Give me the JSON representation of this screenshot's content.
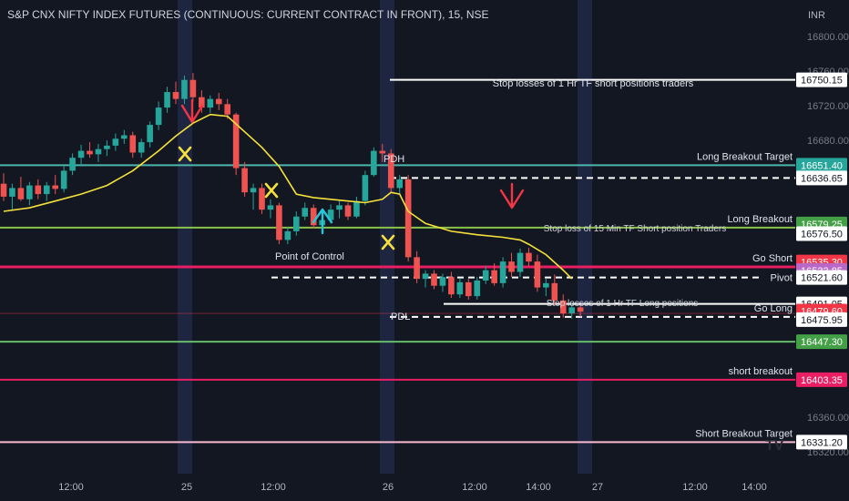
{
  "chart_data": {
    "type": "candlestick",
    "title": "S&P CNX NIFTY INDEX FUTURES (CONTINUOUS: CURRENT CONTRACT IN FRONT), 15, NSE",
    "currency": "INR",
    "y_ticks": [
      "16800.00",
      "16760.00",
      "16720.00",
      "16680.00",
      "16360.00",
      "16320.00"
    ],
    "x_ticks": [
      "12:00",
      "25",
      "12:00",
      "26",
      "12:00",
      "14:00",
      "27",
      "12:00",
      "14:00"
    ],
    "ylim": [
      16300,
      16815
    ],
    "candles": [
      [
        16630,
        16642,
        16610,
        16615
      ],
      [
        16615,
        16630,
        16600,
        16625
      ],
      [
        16625,
        16638,
        16610,
        16612
      ],
      [
        16612,
        16632,
        16605,
        16628
      ],
      [
        16628,
        16635,
        16612,
        16618
      ],
      [
        16618,
        16632,
        16610,
        16628
      ],
      [
        16628,
        16640,
        16618,
        16624
      ],
      [
        16624,
        16650,
        16620,
        16645
      ],
      [
        16645,
        16665,
        16640,
        16660
      ],
      [
        16660,
        16675,
        16650,
        16668
      ],
      [
        16668,
        16678,
        16660,
        16664
      ],
      [
        16664,
        16676,
        16655,
        16670
      ],
      [
        16670,
        16680,
        16662,
        16674
      ],
      [
        16674,
        16688,
        16668,
        16682
      ],
      [
        16682,
        16692,
        16676,
        16686
      ],
      [
        16686,
        16690,
        16660,
        16666
      ],
      [
        16666,
        16682,
        16660,
        16678
      ],
      [
        16678,
        16702,
        16672,
        16698
      ],
      [
        16698,
        16725,
        16692,
        16718
      ],
      [
        16718,
        16742,
        16712,
        16736
      ],
      [
        16736,
        16748,
        16722,
        16728
      ],
      [
        16728,
        16755,
        16722,
        16750
      ],
      [
        16750,
        16758,
        16725,
        16730
      ],
      [
        16730,
        16738,
        16712,
        16718
      ],
      [
        16718,
        16732,
        16712,
        16728
      ],
      [
        16728,
        16735,
        16715,
        16722
      ],
      [
        16722,
        16728,
        16705,
        16710
      ],
      [
        16710,
        16712,
        16640,
        16648
      ],
      [
        16648,
        16655,
        16615,
        16620
      ],
      [
        16620,
        16630,
        16600,
        16625
      ],
      [
        16625,
        16630,
        16595,
        16600
      ],
      [
        16600,
        16612,
        16590,
        16605
      ],
      [
        16605,
        16608,
        16560,
        16565
      ],
      [
        16565,
        16580,
        16560,
        16575
      ],
      [
        16575,
        16598,
        16570,
        16592
      ],
      [
        16592,
        16608,
        16588,
        16602
      ],
      [
        16602,
        16606,
        16578,
        16582
      ],
      [
        16582,
        16592,
        16575,
        16588
      ],
      [
        16588,
        16606,
        16584,
        16600
      ],
      [
        16600,
        16610,
        16590,
        16605
      ],
      [
        16605,
        16608,
        16588,
        16592
      ],
      [
        16592,
        16615,
        16590,
        16610
      ],
      [
        16610,
        16645,
        16605,
        16640
      ],
      [
        16640,
        16672,
        16638,
        16668
      ],
      [
        16668,
        16676,
        16655,
        16665
      ],
      [
        16665,
        16670,
        16620,
        16625
      ],
      [
        16625,
        16640,
        16618,
        16635
      ],
      [
        16635,
        16640,
        16540,
        16545
      ],
      [
        16545,
        16552,
        16515,
        16520
      ],
      [
        16520,
        16530,
        16510,
        16526
      ],
      [
        16526,
        16530,
        16508,
        16512
      ],
      [
        16512,
        16526,
        16505,
        16522
      ],
      [
        16522,
        16528,
        16498,
        16502
      ],
      [
        16502,
        16520,
        16498,
        16516
      ],
      [
        16516,
        16520,
        16496,
        16500
      ],
      [
        16500,
        16522,
        16496,
        16518
      ],
      [
        16518,
        16535,
        16514,
        16530
      ],
      [
        16530,
        16538,
        16512,
        16515
      ],
      [
        16515,
        16545,
        16510,
        16540
      ],
      [
        16540,
        16550,
        16522,
        16528
      ],
      [
        16528,
        16555,
        16522,
        16550
      ],
      [
        16550,
        16556,
        16535,
        16540
      ],
      [
        16540,
        16548,
        16505,
        16510
      ],
      [
        16510,
        16520,
        16500,
        16515
      ],
      [
        16515,
        16525,
        16490,
        16495
      ],
      [
        16495,
        16502,
        16475,
        16480
      ],
      [
        16480,
        16492,
        16474,
        16487
      ],
      [
        16487,
        16490,
        16476,
        16482
      ]
    ],
    "ema_line": [
      [
        0,
        16598
      ],
      [
        3,
        16602
      ],
      [
        6,
        16610
      ],
      [
        9,
        16618
      ],
      [
        12,
        16628
      ],
      [
        15,
        16645
      ],
      [
        18,
        16668
      ],
      [
        20,
        16685
      ],
      [
        22,
        16700
      ],
      [
        24,
        16710
      ],
      [
        26,
        16708
      ],
      [
        28,
        16690
      ],
      [
        30,
        16672
      ],
      [
        32,
        16650
      ],
      [
        34,
        16618
      ],
      [
        36,
        16614
      ],
      [
        38,
        16612
      ],
      [
        40,
        16610
      ],
      [
        42,
        16608
      ],
      [
        44,
        16612
      ],
      [
        45,
        16620
      ],
      [
        46,
        16618
      ],
      [
        47,
        16598
      ],
      [
        49,
        16584
      ],
      [
        52,
        16575
      ],
      [
        55,
        16571
      ],
      [
        58,
        16568
      ],
      [
        60,
        16565
      ],
      [
        61,
        16560
      ],
      [
        63,
        16548
      ],
      [
        65,
        16530
      ],
      [
        66,
        16520
      ]
    ],
    "levels": [
      {
        "label": "Long Breakout Target",
        "price": "16651.40",
        "value": 16651.4,
        "line": "#4db6ac",
        "bg": "#26a69a",
        "fg": "#ffffff"
      },
      {
        "label": "",
        "price": "16636.65",
        "value": 16636.65,
        "line": "#ffffff",
        "dashed": true,
        "bg": "#ffffff",
        "fg": "#131722"
      },
      {
        "label": "Long Breakout",
        "price": "16579.25",
        "value": 16579.25,
        "line": "#8bc34a",
        "bg": "#43a047",
        "fg": "#ffffff"
      },
      {
        "label": "",
        "price": "16576.50",
        "value": 16576.5,
        "bg": "#ffffff",
        "fg": "#131722"
      },
      {
        "label": "",
        "price": "16535.30",
        "value": 16535.3,
        "bg": "#f23645",
        "fg": "#ffffff"
      },
      {
        "label": "Go Short",
        "price": "16533.85",
        "value": 16533.85,
        "line": "#e91e63",
        "bg": "#ba68c8",
        "fg": "#ffffff"
      },
      {
        "label": "Pivot",
        "price": "16521.60",
        "value": 16521.6,
        "line": "#ffffff",
        "dashed": true,
        "bg": "#ffffff",
        "fg": "#131722"
      },
      {
        "label": "",
        "price": "16491.05",
        "value": 16491.05,
        "line": "#ffffff",
        "bg": "#ffffff",
        "fg": "#131722"
      },
      {
        "label": "",
        "price": "16479.60",
        "value": 16479.6,
        "bg": "#f23645",
        "fg": "#ffffff"
      },
      {
        "label": "Go Long",
        "price": "16475.95",
        "value": 16475.95,
        "line": "#ffffff",
        "dashed": true,
        "bg": "#ffffff",
        "fg": "#131722"
      },
      {
        "label": "",
        "price": "16447.30",
        "value": 16447.3,
        "line": "#66bb6a",
        "bg": "#43a047",
        "fg": "#ffffff"
      },
      {
        "label": "short breakout",
        "price": "16403.35",
        "value": 16403.35,
        "line": "#e91e63",
        "bg": "#e91e63",
        "fg": "#ffffff"
      },
      {
        "label": "Short  Breakout Target",
        "price": "16331.20",
        "value": 16331.2,
        "line": "#f8bbd0",
        "bg": "#ffffff",
        "fg": "#131722"
      },
      {
        "label": "",
        "price": "16750.15",
        "value": 16750.15,
        "line": "#ffffff",
        "bg": "#ffffff",
        "fg": "#131722"
      }
    ],
    "annotations": {
      "stop_short_1hr": "Stop losses of 1 Hr TF short positions traders",
      "pdh": "PDH",
      "pdl": "PDL",
      "stop_short_15m": "Stop loss of 15 Min TF Short position Traders",
      "point_of_control": "Point of Control",
      "stop_long_1hr": "Stop losses of 1 Hr TF Long positions"
    },
    "watermark": "TV"
  }
}
